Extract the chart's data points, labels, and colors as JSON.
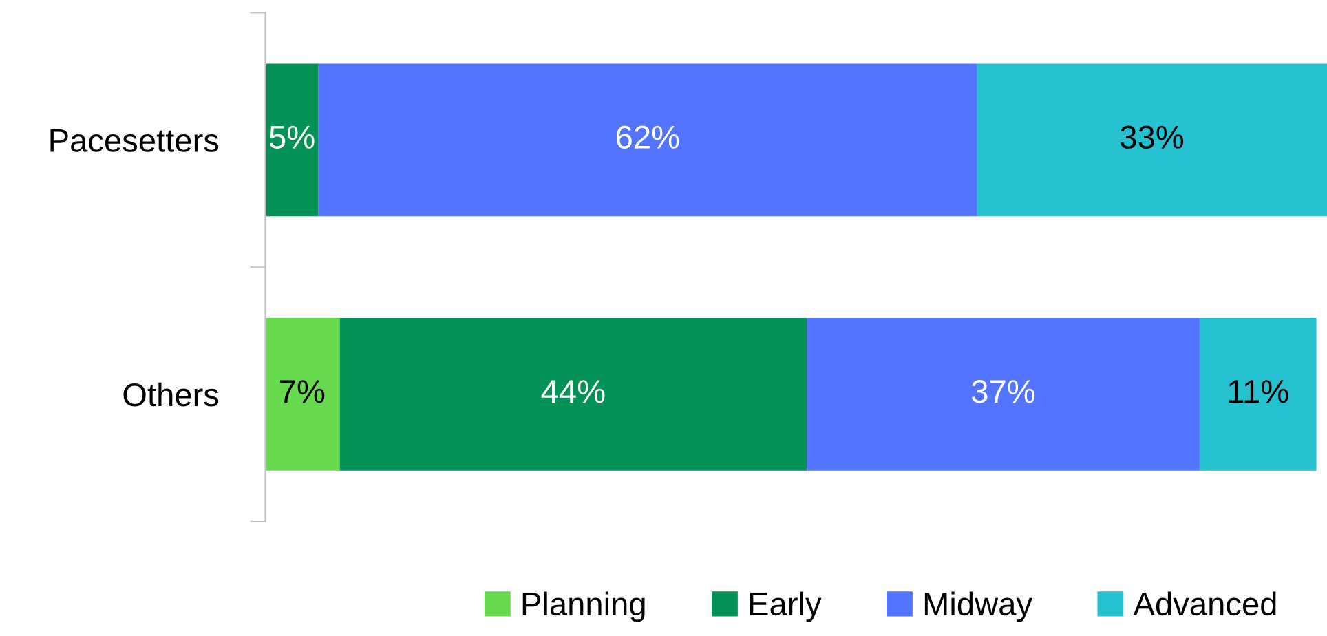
{
  "chart_data": {
    "type": "bar",
    "orientation": "horizontal",
    "stacked": true,
    "legend": "bottom",
    "grid": false,
    "categories": [
      "Pacesetters",
      "Others"
    ],
    "series": [
      {
        "name": "Planning",
        "color": "#66d94f",
        "values": [
          0,
          7
        ],
        "value_labels": [
          null,
          "7%"
        ]
      },
      {
        "name": "Early",
        "color": "#039155",
        "values": [
          5,
          44
        ],
        "value_labels": [
          "5%",
          "44%"
        ]
      },
      {
        "name": "Midway",
        "color": "#5274ff",
        "values": [
          62,
          37
        ],
        "value_labels": [
          "62%",
          "37%"
        ]
      },
      {
        "name": "Advanced",
        "color": "#25c1cf",
        "values": [
          33,
          11
        ],
        "value_labels": [
          "33%",
          "11%"
        ]
      }
    ]
  }
}
